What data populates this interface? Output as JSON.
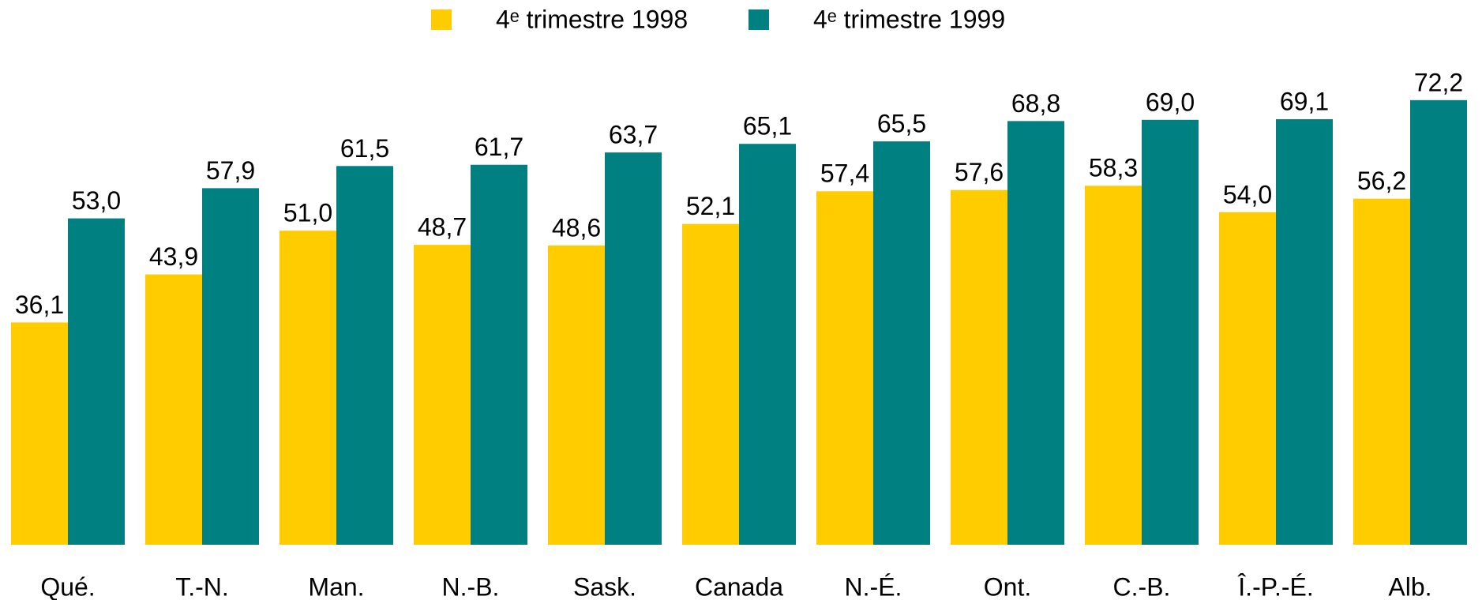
{
  "chart_data": {
    "type": "bar",
    "categories": [
      "Qué.",
      "T.-N.",
      "Man.",
      "N.-B.",
      "Sask.",
      "Canada",
      "N.-É.",
      "Ont.",
      "C.-B.",
      "Î.-P.-É.",
      "Alb."
    ],
    "series": [
      {
        "name": "4ᵉ trimestre 1998",
        "color": "#FFCC00",
        "values": [
          36.1,
          43.9,
          51.0,
          48.7,
          48.6,
          52.1,
          57.4,
          57.6,
          58.3,
          54.0,
          56.2
        ],
        "value_labels": [
          "36,1",
          "43,9",
          "51,0",
          "48,7",
          "48,6",
          "52,1",
          "57,4",
          "57,6",
          "58,3",
          "54,0",
          "56,2"
        ]
      },
      {
        "name": "4ᵉ trimestre 1999",
        "color": "#008080",
        "values": [
          53.0,
          57.9,
          61.5,
          61.7,
          63.7,
          65.1,
          65.5,
          68.8,
          69.0,
          69.1,
          72.2
        ],
        "value_labels": [
          "53,0",
          "57,9",
          "61,5",
          "61,7",
          "63,7",
          "65,1",
          "65,5",
          "68,8",
          "69,0",
          "69,1",
          "72,2"
        ]
      }
    ],
    "ylim": [
      0,
      80
    ],
    "legend": "top",
    "grid": false
  }
}
